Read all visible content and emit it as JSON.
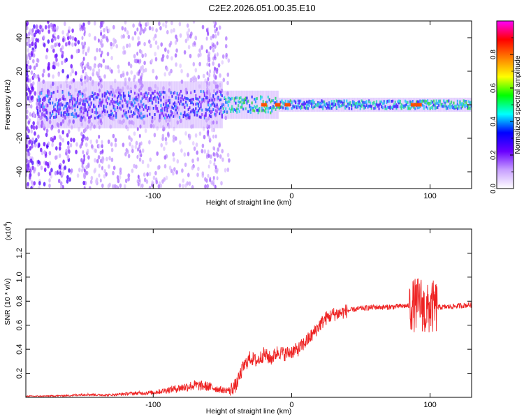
{
  "title": "C2E2.2026.051.00.35.E10",
  "chart_data": [
    {
      "type": "heatmap",
      "name": "spectrogram",
      "xlabel": "Height of straight line (km)",
      "ylabel": "Frequency (Hz)",
      "xlim": [
        -192,
        130
      ],
      "ylim": [
        -50,
        50
      ],
      "xticks": [
        -100,
        0,
        100
      ],
      "xtick_labels": [
        "-100",
        "0",
        "100"
      ],
      "yticks": [
        -40,
        -20,
        0,
        20,
        40
      ],
      "ytick_labels": [
        "-40",
        "-20",
        "0",
        "20",
        "40"
      ],
      "description_of_values": "Normalized spectral amplitude concentrated near 0 Hz across all heights; broadband scatter below -50 km; strongest amplitudes near -20 to 0 km and near 85-100 km",
      "band_center_hz": 0,
      "hot_spots_km": [
        -20,
        -10,
        -3,
        88,
        92
      ]
    },
    {
      "type": "colorbar",
      "name": "amplitude-scale",
      "label": "Normalized spectral amplitude",
      "range": [
        0.0,
        1.0
      ],
      "ticks": [
        0.0,
        0.2,
        0.4,
        0.6,
        0.8
      ],
      "tick_labels": [
        "0.0",
        "0.2",
        "0.4",
        "0.6",
        "0.8"
      ],
      "colormap": [
        "#ffffff",
        "#c8a0ff",
        "#6a00ff",
        "#0000ff",
        "#00ffff",
        "#00ff00",
        "#ffff00",
        "#ff8000",
        "#ff0000",
        "#ff00ff"
      ]
    },
    {
      "type": "line",
      "name": "snr",
      "xlabel": "Height of straight line (km)",
      "ylabel": "SNR (10 * v/v)",
      "y_multiplier": "(x10",
      "y_multiplier_exp": "4",
      "xlim": [
        -192,
        130
      ],
      "ylim": [
        0,
        1.4
      ],
      "xticks": [
        -100,
        0,
        100
      ],
      "xtick_labels": [
        "-100",
        "0",
        "100"
      ],
      "yticks": [
        0.2,
        0.4,
        0.6,
        0.8,
        1.0,
        1.2
      ],
      "ytick_labels": [
        "0.2",
        "0.4",
        "0.6",
        "0.8",
        "1.0",
        "1.2"
      ],
      "color": "#ee2222",
      "series": [
        {
          "name": "SNR",
          "x": [
            -192,
            -180,
            -160,
            -150,
            -140,
            -130,
            -120,
            -110,
            -100,
            -90,
            -80,
            -70,
            -60,
            -50,
            -45,
            -40,
            -35,
            -30,
            -25,
            -20,
            -15,
            -10,
            -5,
            0,
            5,
            10,
            15,
            20,
            25,
            30,
            35,
            40,
            50,
            60,
            70,
            80,
            85,
            90,
            93,
            95,
            97,
            100,
            105,
            110,
            120,
            130
          ],
          "y": [
            0.01,
            0.01,
            0.015,
            0.025,
            0.02,
            0.02,
            0.03,
            0.035,
            0.04,
            0.06,
            0.08,
            0.1,
            0.09,
            0.06,
            0.06,
            0.1,
            0.25,
            0.33,
            0.3,
            0.36,
            0.32,
            0.38,
            0.36,
            0.38,
            0.4,
            0.46,
            0.52,
            0.6,
            0.66,
            0.69,
            0.7,
            0.72,
            0.74,
            0.75,
            0.75,
            0.76,
            0.76,
            0.77,
            0.8,
            0.75,
            0.7,
            0.75,
            0.75,
            0.75,
            0.76,
            0.77
          ]
        }
      ]
    }
  ]
}
